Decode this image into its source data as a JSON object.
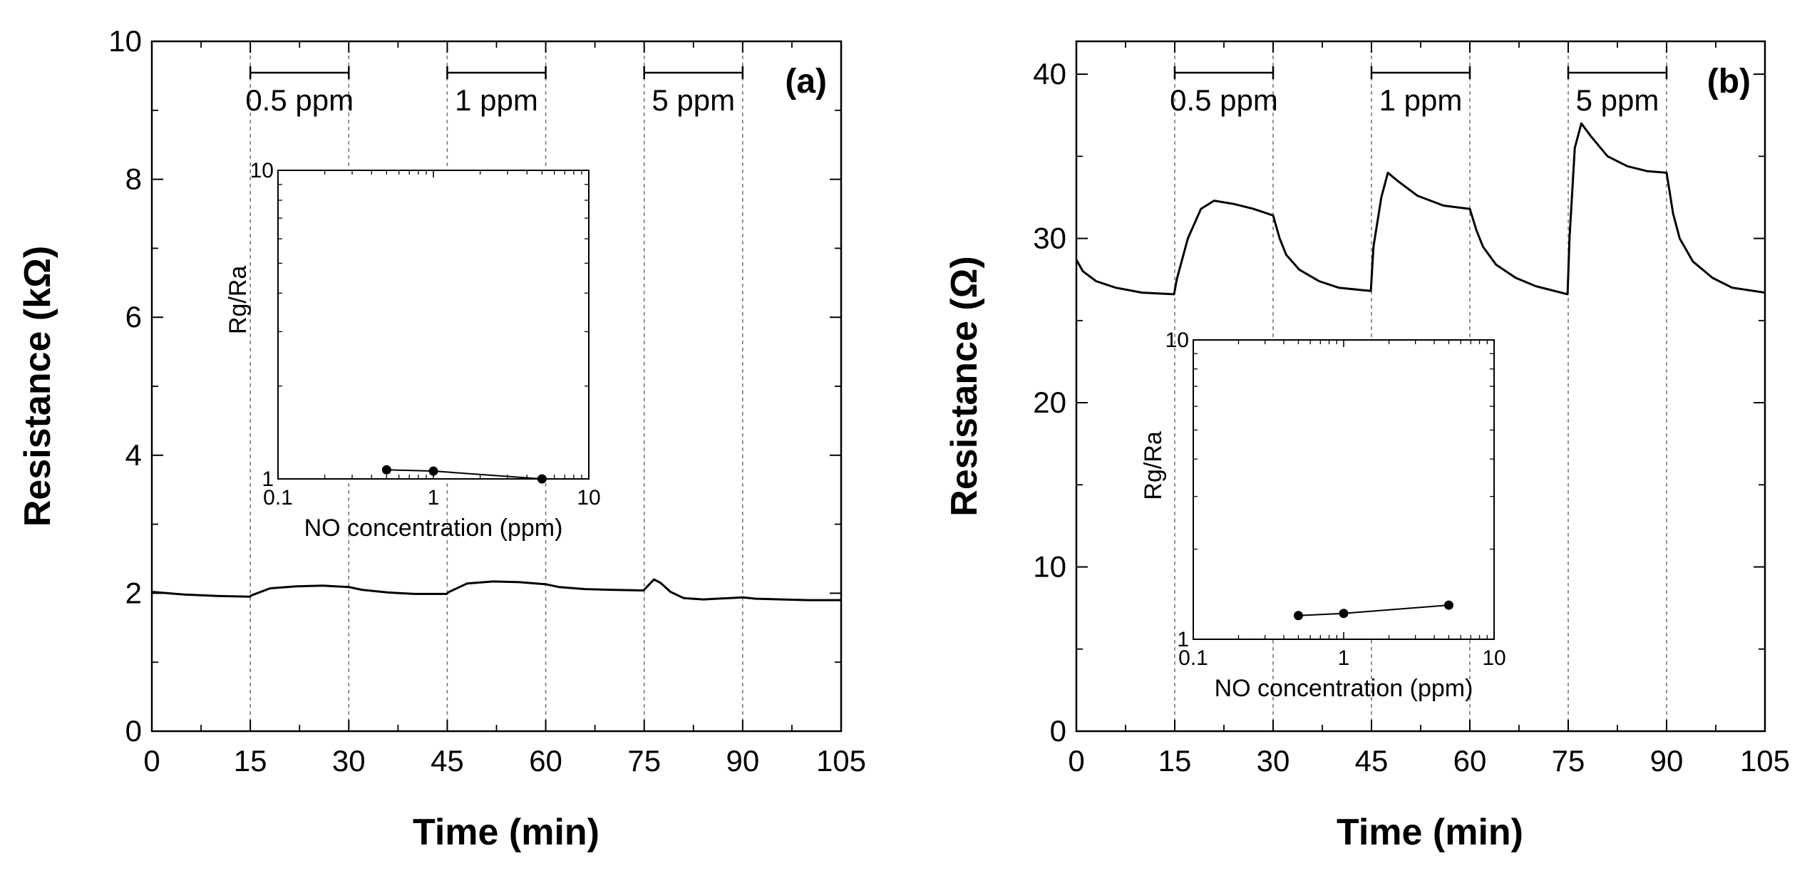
{
  "chart_data": [
    {
      "type": "line",
      "panel_label": "(a)",
      "xlabel": "Time (min)",
      "ylabel": "Resistance (kΩ)",
      "xlim": [
        0,
        105
      ],
      "ylim": [
        0,
        10
      ],
      "xticks": [
        0,
        15,
        30,
        45,
        60,
        75,
        90,
        105
      ],
      "yticks": [
        0,
        2,
        4,
        6,
        8,
        10
      ],
      "ytick_labels": [
        "0",
        "2",
        "4",
        "6",
        "8",
        "10"
      ],
      "exposure_windows": [
        {
          "label": "0.5 ppm",
          "start": 15,
          "end": 30
        },
        {
          "label": "1 ppm",
          "start": 45,
          "end": 60
        },
        {
          "label": "5 ppm",
          "start": 75,
          "end": 90
        }
      ],
      "series": [
        {
          "x": [
            0,
            5,
            10,
            14.9,
            15.2,
            18,
            22,
            26,
            30,
            32,
            36,
            40,
            44.9,
            45.3,
            48,
            52,
            56,
            60,
            62,
            66,
            70,
            74.9,
            75.5,
            76.5,
            77.5,
            79,
            81,
            84,
            88,
            90,
            92,
            96,
            100,
            105
          ],
          "y": [
            2.02,
            1.98,
            1.96,
            1.95,
            1.97,
            2.07,
            2.1,
            2.11,
            2.09,
            2.05,
            2.01,
            1.99,
            1.99,
            2.02,
            2.14,
            2.17,
            2.16,
            2.13,
            2.09,
            2.06,
            2.05,
            2.04,
            2.1,
            2.2,
            2.15,
            2.02,
            1.93,
            1.91,
            1.93,
            1.94,
            1.92,
            1.91,
            1.9,
            1.9
          ]
        }
      ],
      "inset": {
        "xlabel": "NO concentration (ppm)",
        "ylabel": "Rg/Ra",
        "xscale": "log",
        "yscale": "log",
        "xlim": [
          0.1,
          10
        ],
        "ylim": [
          1,
          10
        ],
        "xtick_labels": [
          "0.1",
          "1",
          "10"
        ],
        "ytick_labels": [
          "1",
          "10"
        ],
        "x": [
          0.5,
          1,
          5
        ],
        "y": [
          1.07,
          1.06,
          1.0
        ]
      }
    },
    {
      "type": "line",
      "panel_label": "(b)",
      "xlabel": "Time (min)",
      "ylabel": "Resistance (Ω)",
      "xlim": [
        0,
        105
      ],
      "ylim": [
        0,
        42
      ],
      "xticks": [
        0,
        15,
        30,
        45,
        60,
        75,
        90,
        105
      ],
      "yticks": [
        0,
        10,
        20,
        30,
        40
      ],
      "ytick_labels": [
        "0",
        "10",
        "20",
        "30",
        "40"
      ],
      "exposure_windows": [
        {
          "label": "0.5 ppm",
          "start": 15,
          "end": 30
        },
        {
          "label": "1 ppm",
          "start": 45,
          "end": 60
        },
        {
          "label": "5 ppm",
          "start": 75,
          "end": 90
        }
      ],
      "series": [
        {
          "x": [
            0,
            1,
            3,
            6,
            10,
            14.9,
            15.3,
            17,
            19,
            21,
            24,
            27,
            30,
            31,
            32,
            34,
            37,
            40,
            44.9,
            45.3,
            46.5,
            47.5,
            49,
            52,
            56,
            60,
            61,
            62,
            64,
            67,
            70,
            74.9,
            75.2,
            76,
            77,
            78.5,
            81,
            84,
            87,
            90,
            91,
            92,
            94,
            97,
            100,
            105
          ],
          "y": [
            28.7,
            28.0,
            27.4,
            27.0,
            26.7,
            26.6,
            27.5,
            30.0,
            31.8,
            32.3,
            32.1,
            31.8,
            31.4,
            30.0,
            29.0,
            28.1,
            27.4,
            27.0,
            26.8,
            29.5,
            32.5,
            34.0,
            33.5,
            32.6,
            32.0,
            31.8,
            30.5,
            29.5,
            28.4,
            27.6,
            27.1,
            26.6,
            30.0,
            35.5,
            37.0,
            36.2,
            35.0,
            34.4,
            34.1,
            34.0,
            31.5,
            30.0,
            28.6,
            27.6,
            27.0,
            26.7
          ]
        }
      ],
      "inset": {
        "xlabel": "NO concentration (ppm)",
        "ylabel": "Rg/Ra",
        "xscale": "log",
        "yscale": "log",
        "xlim": [
          0.1,
          10
        ],
        "ylim": [
          1,
          10
        ],
        "xtick_labels": [
          "0.1",
          "1",
          "10"
        ],
        "ytick_labels": [
          "1",
          "10"
        ],
        "x": [
          0.5,
          1,
          5
        ],
        "y": [
          1.2,
          1.22,
          1.3
        ]
      }
    }
  ]
}
